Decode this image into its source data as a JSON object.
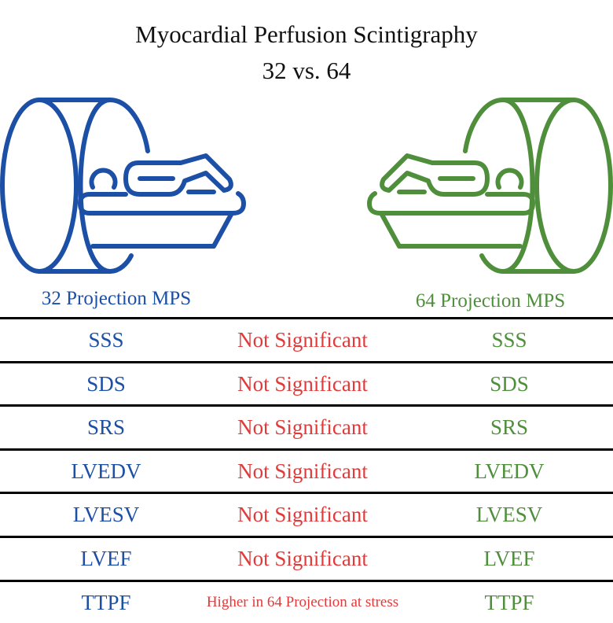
{
  "title": {
    "line1": "Myocardial Perfusion Scintigraphy",
    "line2": "32 vs. 64"
  },
  "colors": {
    "blue": "#1c4fa6",
    "green": "#4f8f3c",
    "red": "#e23a3a"
  },
  "icons": {
    "left": "scanner-patient-icon",
    "right": "scanner-patient-icon"
  },
  "left_label": "32 Projection MPS",
  "right_label": "64 Projection MPS",
  "rows": [
    {
      "left": "SSS",
      "middle": "Not Significant",
      "right": "SSS"
    },
    {
      "left": "SDS",
      "middle": "Not Significant",
      "right": "SDS"
    },
    {
      "left": "SRS",
      "middle": "Not Significant",
      "right": "SRS"
    },
    {
      "left": "LVEDV",
      "middle": "Not Significant",
      "right": "LVEDV"
    },
    {
      "left": "LVESV",
      "middle": "Not Significant",
      "right": "LVESV"
    },
    {
      "left": "LVEF",
      "middle": "Not Significant",
      "right": "LVEF"
    },
    {
      "left": "TTPF",
      "middle": "Higher in 64 Projection at stress",
      "right": "TTPF"
    }
  ]
}
